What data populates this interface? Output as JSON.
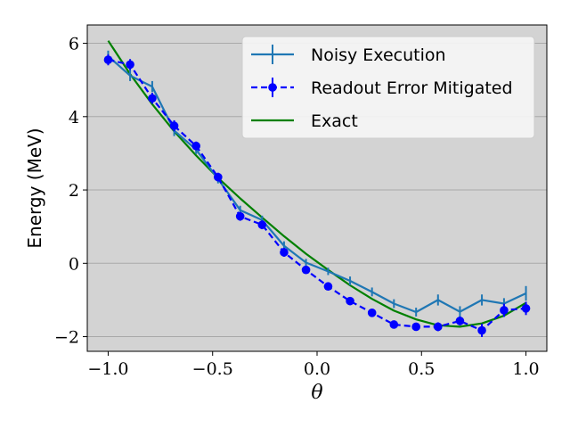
{
  "chart_data": {
    "type": "line",
    "xlabel": "θ",
    "ylabel": "Energy (MeV)",
    "xlim": [
      -1.1,
      1.1
    ],
    "ylim": [
      -2.4,
      6.5
    ],
    "xticks": [
      -1.0,
      -0.5,
      0.0,
      0.5,
      1.0
    ],
    "xtick_labels": [
      "−1.0",
      "−0.5",
      "0.0",
      "0.5",
      "1.0"
    ],
    "yticks": [
      -2,
      0,
      2,
      4,
      6
    ],
    "ytick_labels": [
      "−2",
      "0",
      "2",
      "4",
      "6"
    ],
    "grid": "horizontal",
    "legend_position": "top-right",
    "background": "#d3d3d3",
    "x": [
      -1.0,
      -0.895,
      -0.789,
      -0.684,
      -0.579,
      -0.474,
      -0.368,
      -0.263,
      -0.158,
      -0.053,
      0.053,
      0.158,
      0.263,
      0.368,
      0.474,
      0.579,
      0.684,
      0.789,
      0.895,
      1.0
    ],
    "series": [
      {
        "name": "Noisy Execution",
        "color": "#1f77b4",
        "style": "solid",
        "marker": "none",
        "errorbars": true,
        "values": [
          5.65,
          5.12,
          4.82,
          3.62,
          3.1,
          2.3,
          1.45,
          1.18,
          0.48,
          0.02,
          -0.22,
          -0.48,
          -0.78,
          -1.1,
          -1.33,
          -1.0,
          -1.32,
          -1.0,
          -1.1,
          -0.82
        ],
        "errors": [
          0.15,
          0.15,
          0.15,
          0.15,
          0.12,
          0.12,
          0.12,
          0.12,
          0.12,
          0.1,
          0.1,
          0.12,
          0.12,
          0.12,
          0.12,
          0.15,
          0.15,
          0.15,
          0.15,
          0.2
        ]
      },
      {
        "name": "Readout Error Mitigated",
        "color": "#0000ff",
        "style": "dashed",
        "marker": "circle",
        "errorbars": true,
        "values": [
          5.55,
          5.42,
          4.5,
          3.75,
          3.2,
          2.35,
          1.28,
          1.05,
          0.3,
          -0.18,
          -0.63,
          -1.03,
          -1.35,
          -1.67,
          -1.73,
          -1.73,
          -1.57,
          -1.83,
          -1.28,
          -1.23
        ],
        "errors": [
          0.15,
          0.15,
          0.15,
          0.15,
          0.12,
          0.12,
          0.12,
          0.12,
          0.12,
          0.1,
          0.1,
          0.1,
          0.1,
          0.1,
          0.1,
          0.12,
          0.12,
          0.18,
          0.18,
          0.18
        ]
      },
      {
        "name": "Exact",
        "color": "#008000",
        "style": "solid",
        "marker": "none",
        "errorbars": false,
        "values": [
          6.07,
          5.16,
          4.34,
          3.6,
          2.94,
          2.33,
          1.77,
          1.25,
          0.74,
          0.26,
          -0.18,
          -0.6,
          -0.97,
          -1.29,
          -1.53,
          -1.69,
          -1.73,
          -1.64,
          -1.43,
          -1.08
        ]
      }
    ]
  }
}
